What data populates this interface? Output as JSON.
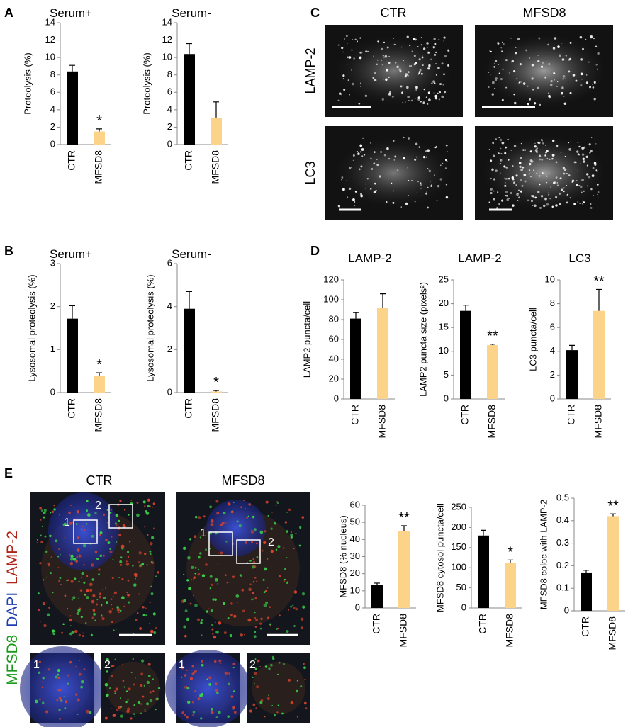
{
  "figure": {
    "panels": [
      "A",
      "B",
      "C",
      "D",
      "E"
    ],
    "images_c": {
      "columns": [
        "CTR",
        "MFSD8"
      ],
      "rows": [
        "LAMP-2",
        "LC3"
      ]
    },
    "images_e": {
      "columns": [
        "CTR",
        "MFSD8"
      ],
      "stain": [
        "MFSD8",
        "DAPI",
        "LAMP-2"
      ],
      "roi": [
        "1",
        "2"
      ]
    }
  },
  "chart_data": [
    {
      "type": "bar",
      "title": "Serum+",
      "y_label": "Proteolysis (%)",
      "categories": [
        "CTR",
        "MFSD8"
      ],
      "values": [
        8.4,
        1.5
      ],
      "errors": [
        0.7,
        0.3
      ],
      "colors": [
        "#000000",
        "#fbd389"
      ],
      "ylim": [
        0,
        14
      ],
      "yticks": [
        0,
        2,
        4,
        6,
        8,
        10,
        12,
        14
      ],
      "annotation": "*"
    },
    {
      "type": "bar",
      "title": "Serum-",
      "y_label": "Proteolysis (%)",
      "categories": [
        "CTR",
        "MFSD8"
      ],
      "values": [
        10.4,
        3.1
      ],
      "errors": [
        1.2,
        1.8
      ],
      "colors": [
        "#000000",
        "#fbd389"
      ],
      "ylim": [
        0,
        14
      ],
      "yticks": [
        0,
        2,
        4,
        6,
        8,
        10,
        12,
        14
      ]
    },
    {
      "type": "bar",
      "title": "Serum+",
      "y_label": "Lysosomal proteolysis (%)",
      "categories": [
        "CTR",
        "MFSD8"
      ],
      "values": [
        1.72,
        0.38
      ],
      "errors": [
        0.3,
        0.08
      ],
      "colors": [
        "#000000",
        "#fbd389"
      ],
      "ylim": [
        0,
        3
      ],
      "yticks": [
        0,
        1,
        2,
        3
      ],
      "annotation": "*"
    },
    {
      "type": "bar",
      "title": "Serum-",
      "y_label": "Lysosomal proteolysis (%)",
      "categories": [
        "CTR",
        "MFSD8"
      ],
      "values": [
        3.9,
        0.05
      ],
      "errors": [
        0.8,
        0.05
      ],
      "colors": [
        "#000000",
        "#fbd389"
      ],
      "ylim": [
        0,
        6
      ],
      "yticks": [
        0,
        2,
        4,
        6
      ],
      "annotation": "*"
    },
    {
      "type": "bar",
      "title": "LAMP-2",
      "y_label": "LAMP2 puncta/cell",
      "categories": [
        "CTR",
        "MFSD8"
      ],
      "values": [
        81,
        92
      ],
      "errors": [
        6,
        14
      ],
      "colors": [
        "#000000",
        "#fbd389"
      ],
      "ylim": [
        0,
        120
      ],
      "yticks": [
        0,
        20,
        40,
        60,
        80,
        100,
        120
      ]
    },
    {
      "type": "bar",
      "title": "LAMP-2",
      "y_label": "LAMP2 puncta size (pixels²)",
      "categories": [
        "CTR",
        "MFSD8"
      ],
      "values": [
        18.5,
        11.3
      ],
      "errors": [
        1.2,
        0.2
      ],
      "colors": [
        "#000000",
        "#fbd389"
      ],
      "ylim": [
        0,
        25
      ],
      "yticks": [
        0,
        5,
        10,
        15,
        20,
        25
      ],
      "annotation": "**"
    },
    {
      "type": "bar",
      "title": "LC3",
      "y_label": "LC3 puncta/cell",
      "categories": [
        "CTR",
        "MFSD8"
      ],
      "values": [
        4.1,
        7.4
      ],
      "errors": [
        0.4,
        1.8
      ],
      "colors": [
        "#000000",
        "#fbd389"
      ],
      "ylim": [
        0,
        10
      ],
      "yticks": [
        0,
        2,
        4,
        6,
        8,
        10
      ],
      "annotation": "**"
    },
    {
      "type": "bar",
      "y_label": "MFSD8 (% nucleus)",
      "categories": [
        "CTR",
        "MFSD8"
      ],
      "values": [
        13.5,
        45
      ],
      "errors": [
        1,
        3
      ],
      "colors": [
        "#000000",
        "#fbd389"
      ],
      "ylim": [
        0,
        60
      ],
      "yticks": [
        0,
        10,
        20,
        30,
        40,
        50,
        60
      ],
      "annotation": "**"
    },
    {
      "type": "bar",
      "y_label": "MFSD8 cytosol puncta/cell",
      "categories": [
        "CTR",
        "MFSD8"
      ],
      "values": [
        180,
        111
      ],
      "errors": [
        13,
        8
      ],
      "colors": [
        "#000000",
        "#fbd389"
      ],
      "ylim": [
        0,
        250
      ],
      "yticks": [
        0,
        50,
        100,
        150,
        200,
        250
      ],
      "annotation": "*"
    },
    {
      "type": "bar",
      "y_label": "MFSD8 coloc with LAMP-2",
      "categories": [
        "CTR",
        "MFSD8"
      ],
      "values": [
        0.17,
        0.42
      ],
      "errors": [
        0.01,
        0.01
      ],
      "colors": [
        "#000000",
        "#fbd389"
      ],
      "ylim": [
        0,
        0.5
      ],
      "yticks": [
        0,
        0.1,
        0.2,
        0.3,
        0.4,
        0.5
      ],
      "annotation": "**"
    }
  ]
}
